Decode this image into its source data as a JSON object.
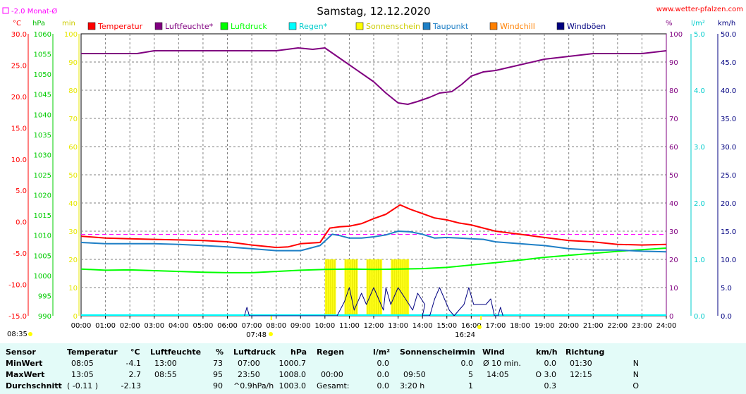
{
  "title": "Samstag, 12.12.2020",
  "site": "www.wetter-pfalzen.com",
  "month_avg_label": "-2.0 Monat-Ø",
  "units": {
    "temp": "°C",
    "pressure": "hPa",
    "sun": "min",
    "percent": "%",
    "rain": "l/m²",
    "wind": "km/h"
  },
  "legend": [
    {
      "label": "Temperatur",
      "color": "#ff0000"
    },
    {
      "label": "Luftfeuchte*",
      "color": "#800080"
    },
    {
      "label": "Luftdruck",
      "color": "#00ff00"
    },
    {
      "label": "Regen*",
      "color": "#00ffff"
    },
    {
      "label": "Sonnenschein",
      "color": "#ffff00"
    },
    {
      "label": "Taupunkt",
      "color": "#1e7fc6"
    },
    {
      "label": "Windchill",
      "color": "#ff8000"
    },
    {
      "label": "Windböen",
      "color": "#000080"
    }
  ],
  "sunrise": "07:48",
  "sunset": "16:24",
  "time_left": "08:35",
  "chart_data": {
    "type": "line",
    "x_ticks": [
      "00:00",
      "01:00",
      "02:00",
      "03:00",
      "04:00",
      "05:00",
      "06:00",
      "07:00",
      "08:00",
      "09:00",
      "10:00",
      "11:00",
      "12:00",
      "13:00",
      "14:00",
      "15:00",
      "16:00",
      "17:00",
      "18:00",
      "19:00",
      "20:00",
      "21:00",
      "22:00",
      "23:00",
      "24:00"
    ],
    "axes": {
      "temp": {
        "range": [
          -15,
          30
        ],
        "ticks": [
          "30.0",
          "25.0",
          "20.0",
          "15.0",
          "10.0",
          "5.0",
          "0.0",
          "-5.0",
          "-10.0",
          "-15.0"
        ],
        "color": "#ff0000"
      },
      "pressure": {
        "range": [
          990,
          1060
        ],
        "ticks": [
          "1060",
          "1055",
          "1050",
          "1045",
          "1040",
          "1035",
          "1030",
          "1025",
          "1020",
          "1015",
          "1010",
          "1005",
          "1000",
          "995",
          "990"
        ],
        "color": "#00cc00"
      },
      "sun": {
        "range": [
          0,
          100
        ],
        "ticks": [
          "100",
          "90",
          "80",
          "70",
          "60",
          "50",
          "40",
          "30",
          "20",
          "10",
          "0"
        ],
        "color": "#ffff00"
      },
      "percent": {
        "range": [
          0,
          100
        ],
        "ticks": [
          "100",
          "90",
          "80",
          "70",
          "60",
          "50",
          "40",
          "30",
          "20",
          "10",
          "0"
        ],
        "color": "#800080"
      },
      "rain": {
        "range": [
          0,
          5
        ],
        "ticks": [
          "5.0",
          "4.0",
          "3.0",
          "2.0",
          "1.0",
          "0.0"
        ],
        "color": "#00ffff"
      },
      "wind": {
        "range": [
          0,
          50
        ],
        "ticks": [
          "50.0",
          "45.0",
          "40.0",
          "35.0",
          "30.0",
          "25.0",
          "20.0",
          "15.0",
          "10.0",
          "5.0",
          "0.0"
        ],
        "color": "#000080"
      }
    },
    "month_avg_temp": -2.0,
    "series": [
      {
        "name": "Temperatur",
        "axis": "temp",
        "color": "#ff0000",
        "points": [
          [
            0,
            -2.3
          ],
          [
            1,
            -2.6
          ],
          [
            2,
            -2.7
          ],
          [
            3,
            -2.8
          ],
          [
            4,
            -2.9
          ],
          [
            5,
            -3.0
          ],
          [
            6,
            -3.2
          ],
          [
            7,
            -3.7
          ],
          [
            8,
            -4.1
          ],
          [
            8.5,
            -4.0
          ],
          [
            9,
            -3.5
          ],
          [
            9.8,
            -3.3
          ],
          [
            10.2,
            -1.0
          ],
          [
            10.6,
            -0.8
          ],
          [
            11,
            -0.7
          ],
          [
            11.5,
            -0.3
          ],
          [
            12,
            0.5
          ],
          [
            12.5,
            1.2
          ],
          [
            13.08,
            2.7
          ],
          [
            13.5,
            2.0
          ],
          [
            14,
            1.3
          ],
          [
            14.5,
            0.6
          ],
          [
            15,
            0.3
          ],
          [
            15.5,
            -0.2
          ],
          [
            16,
            -0.5
          ],
          [
            16.5,
            -1.0
          ],
          [
            17,
            -1.5
          ],
          [
            18,
            -2.0
          ],
          [
            19,
            -2.5
          ],
          [
            20,
            -3.0
          ],
          [
            21,
            -3.2
          ],
          [
            22,
            -3.6
          ],
          [
            23,
            -3.7
          ],
          [
            24,
            -3.6
          ]
        ]
      },
      {
        "name": "Luftfeuchte*",
        "axis": "percent",
        "color": "#800080",
        "points": [
          [
            0,
            93
          ],
          [
            2.3,
            93
          ],
          [
            3,
            94
          ],
          [
            4,
            94
          ],
          [
            5,
            94
          ],
          [
            6,
            94
          ],
          [
            7,
            94
          ],
          [
            8,
            94
          ],
          [
            8.9,
            95
          ],
          [
            9.5,
            94.5
          ],
          [
            10,
            95
          ],
          [
            10.5,
            92
          ],
          [
            11,
            89
          ],
          [
            11.5,
            86
          ],
          [
            12,
            83
          ],
          [
            12.5,
            79
          ],
          [
            13,
            75.5
          ],
          [
            13.4,
            75
          ],
          [
            13.8,
            76
          ],
          [
            14.3,
            77.5
          ],
          [
            14.7,
            79
          ],
          [
            15.2,
            79.5
          ],
          [
            15.6,
            82
          ],
          [
            16,
            85
          ],
          [
            16.5,
            86.5
          ],
          [
            17,
            87
          ],
          [
            18,
            89
          ],
          [
            19,
            91
          ],
          [
            20,
            92
          ],
          [
            21,
            93
          ],
          [
            22,
            93
          ],
          [
            23,
            93
          ],
          [
            24,
            94
          ]
        ]
      },
      {
        "name": "Luftdruck",
        "axis": "pressure",
        "color": "#00ff00",
        "points": [
          [
            0,
            1001.6
          ],
          [
            1,
            1001.3
          ],
          [
            2,
            1001.4
          ],
          [
            3,
            1001.2
          ],
          [
            4,
            1001.0
          ],
          [
            5,
            1000.8
          ],
          [
            6,
            1000.7
          ],
          [
            7,
            1000.7
          ],
          [
            8,
            1001.0
          ],
          [
            9,
            1001.3
          ],
          [
            10,
            1001.5
          ],
          [
            11,
            1001.6
          ],
          [
            12,
            1001.5
          ],
          [
            13,
            1001.6
          ],
          [
            14,
            1001.7
          ],
          [
            15,
            1002.0
          ],
          [
            16,
            1002.6
          ],
          [
            17,
            1003.2
          ],
          [
            18,
            1003.8
          ],
          [
            19,
            1004.5
          ],
          [
            20,
            1005.0
          ],
          [
            21,
            1005.5
          ],
          [
            22,
            1006.0
          ],
          [
            23,
            1006.4
          ],
          [
            24,
            1006.8
          ]
        ]
      },
      {
        "name": "Taupunkt",
        "axis": "temp",
        "color": "#1e7fc6",
        "points": [
          [
            0,
            -3.3
          ],
          [
            1,
            -3.5
          ],
          [
            2,
            -3.5
          ],
          [
            3,
            -3.5
          ],
          [
            4,
            -3.6
          ],
          [
            5,
            -3.8
          ],
          [
            6,
            -4.0
          ],
          [
            7,
            -4.3
          ],
          [
            8,
            -4.6
          ],
          [
            9,
            -4.6
          ],
          [
            9.8,
            -3.8
          ],
          [
            10.3,
            -2.0
          ],
          [
            10.6,
            -2.2
          ],
          [
            11,
            -2.6
          ],
          [
            11.5,
            -2.6
          ],
          [
            12,
            -2.4
          ],
          [
            12.5,
            -2.1
          ],
          [
            13,
            -1.5
          ],
          [
            13.5,
            -1.6
          ],
          [
            14,
            -2.0
          ],
          [
            14.5,
            -2.6
          ],
          [
            15,
            -2.5
          ],
          [
            15.5,
            -2.6
          ],
          [
            16,
            -2.7
          ],
          [
            16.5,
            -2.8
          ],
          [
            17,
            -3.2
          ],
          [
            18,
            -3.5
          ],
          [
            19,
            -3.8
          ],
          [
            20,
            -4.3
          ],
          [
            21,
            -4.5
          ],
          [
            22,
            -4.5
          ],
          [
            23,
            -4.7
          ],
          [
            24,
            -4.8
          ]
        ]
      },
      {
        "name": "Windböen",
        "axis": "wind",
        "color": "#000080",
        "points": [
          [
            6.7,
            0
          ],
          [
            6.8,
            1.5
          ],
          [
            6.9,
            0
          ],
          [
            10.5,
            0
          ],
          [
            10.8,
            2.5
          ],
          [
            11,
            5
          ],
          [
            11.2,
            1
          ],
          [
            11.5,
            4
          ],
          [
            11.7,
            2
          ],
          [
            12,
            5
          ],
          [
            12.2,
            3
          ],
          [
            12.4,
            1
          ],
          [
            12.5,
            5
          ],
          [
            12.7,
            2
          ],
          [
            13,
            5
          ],
          [
            13.3,
            3
          ],
          [
            13.6,
            1
          ],
          [
            13.8,
            4
          ],
          [
            14.1,
            2
          ],
          [
            14,
            0
          ],
          [
            14.3,
            0
          ],
          [
            14.5,
            3
          ],
          [
            14.7,
            5
          ],
          [
            14.9,
            3
          ],
          [
            15.1,
            1
          ],
          [
            15.3,
            0
          ],
          [
            15.5,
            1
          ],
          [
            15.7,
            2
          ],
          [
            15.9,
            5
          ],
          [
            16.1,
            2
          ],
          [
            16.3,
            2
          ],
          [
            16.6,
            2
          ],
          [
            16.8,
            3
          ],
          [
            16.95,
            0
          ],
          [
            17.1,
            0
          ],
          [
            17.2,
            1.5
          ],
          [
            17.3,
            0
          ]
        ]
      }
    ],
    "sunshine_bars": [
      [
        10.0,
        10.45
      ],
      [
        10.8,
        11.35
      ],
      [
        11.7,
        12.35
      ],
      [
        12.7,
        13.45
      ]
    ],
    "sunshine_value": 5
  },
  "table": {
    "headers": [
      {
        "label": "Sensor"
      },
      {
        "label": "Temperatur",
        "unit": "°C"
      },
      {
        "label": "Luftfeuchte",
        "unit": "%"
      },
      {
        "label": "Luftdruck",
        "unit": "hPa"
      },
      {
        "label": "Regen",
        "unit": "l/m²"
      },
      {
        "label": "Sonnenschein",
        "unit": "min"
      },
      {
        "label": "Wind",
        "unit": "km/h"
      },
      {
        "label": "Richtung"
      }
    ],
    "rows": [
      {
        "label": "MinWert",
        "temp_time": "08:05",
        "temp_val": "-4.1",
        "hum_time": "13:00",
        "hum_val": "73",
        "press_time": "07:00",
        "press_val": "1000.7",
        "rain_time": "",
        "rain_val": "0.0",
        "sun_time": "",
        "sun_val": "0.0",
        "wind_time": "Ø 10 min.",
        "wind_val": "0.0",
        "dir_time": "01:30",
        "dir_val": "N"
      },
      {
        "label": "MaxWert",
        "temp_time": "13:05",
        "temp_val": "2.7",
        "hum_time": "08:55",
        "hum_val": "95",
        "press_time": "23:50",
        "press_val": "1008.0",
        "rain_time": "00:00",
        "rain_val": "0.0",
        "sun_time": "09:50",
        "sun_val": "5",
        "wind_time": "14:05",
        "wind_val": "O 3.0",
        "dir_time": "12:15",
        "dir_val": "N"
      },
      {
        "label": "Durchschnitt",
        "temp_time": "( -0.11 )",
        "temp_val": "-2.13",
        "hum_time": "",
        "hum_val": "90",
        "press_time": "^0.9hPa/h",
        "press_val": "1003.0",
        "rain_time": "Gesamt:",
        "rain_val": "0.0",
        "sun_time": "3:20 h",
        "sun_val": "1",
        "wind_time": "",
        "wind_val": "0.3",
        "dir_time": "",
        "dir_val": "O"
      }
    ]
  }
}
